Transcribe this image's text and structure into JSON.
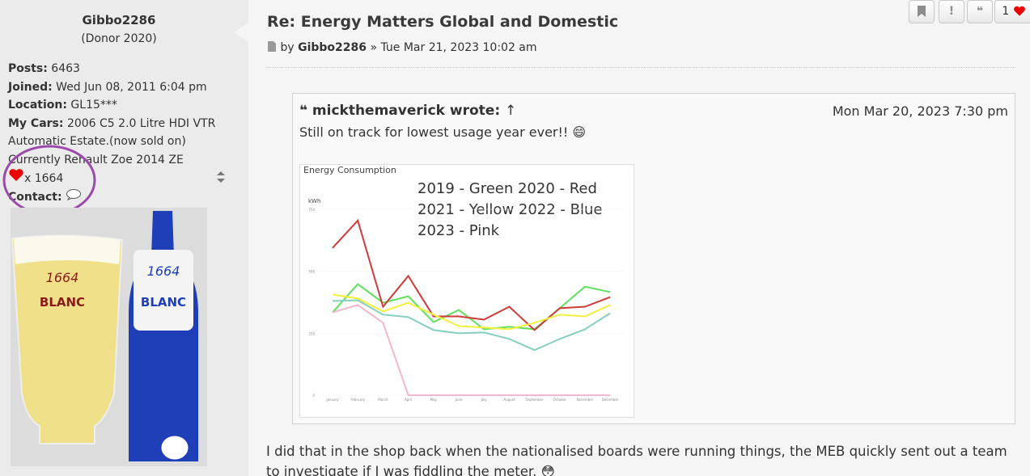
{
  "profile": {
    "username": "Gibbo2286",
    "rank": "(Donor 2020)",
    "fields": [
      {
        "label": "Posts:",
        "value": "6463"
      },
      {
        "label": "Joined:",
        "value": "Wed Jun 08, 2011 6:04 pm"
      },
      {
        "label": "Location:",
        "value": "GL15***"
      },
      {
        "label": "My Cars:",
        "value": "2006 C5 2.0 Litre HDI VTR Automatic Estate.(now sold on) Currently Renault Zoe 2014 ZE"
      }
    ],
    "likes": "x 1664",
    "contact": "Contact:"
  },
  "avatar": {
    "glass_logo": "1664",
    "glass_brand": "BLANC",
    "bottle_logo": "1664",
    "bottle_brand": "BLANC"
  },
  "post": {
    "title": "Re: Energy Matters Global and Domestic",
    "by": "by",
    "author": "Gibbo2286",
    "separator": "»",
    "date": "Tue Mar 21, 2023 10:02 am",
    "reactions": "1",
    "quote": {
      "author": "mickthemaverick wrote:",
      "arrow": "↑",
      "date": "Mon Mar 20, 2023 7:30 pm",
      "text": "Still on track for lowest usage year ever!! 😄"
    },
    "body": "I did that in the shop back when the nationalised boards were running things, the MEB quickly sent out a team to investigate if I was fiddling the meter. 😳"
  },
  "chart": {
    "type": "line",
    "title": "Energy Consumption",
    "ylabel": "kWh",
    "annotation": [
      "2019 - Green  2020 - Red",
      "2021 - Yellow 2022 - Blue",
      "2023 - Pink"
    ],
    "categories": [
      "January",
      "February",
      "March",
      "April",
      "May",
      "June",
      "July",
      "August",
      "September",
      "October",
      "November",
      "December"
    ],
    "ylim": [
      0,
      750
    ],
    "yticks": [
      0,
      250,
      500,
      750
    ],
    "series": [
      {
        "color": "#5ee05e",
        "values": [
          334,
          448,
          373,
          399,
          295,
          344,
          266,
          276,
          266,
          351,
          438,
          416
        ]
      },
      {
        "color": "#d03a3a",
        "values": [
          594,
          705,
          357,
          481,
          318,
          318,
          305,
          357,
          263,
          351,
          357,
          396
        ]
      },
      {
        "color": "#f2f03a",
        "values": [
          406,
          390,
          338,
          373,
          325,
          279,
          273,
          266,
          292,
          325,
          318,
          364
        ]
      },
      {
        "color": "#86cfc0",
        "values": [
          380,
          383,
          325,
          315,
          263,
          250,
          253,
          227,
          182,
          227,
          266,
          331
        ]
      },
      {
        "color": "#f2b6cf",
        "values": [
          334,
          364,
          292,
          0,
          0,
          0,
          0,
          0,
          0,
          0,
          0,
          0
        ]
      }
    ]
  }
}
